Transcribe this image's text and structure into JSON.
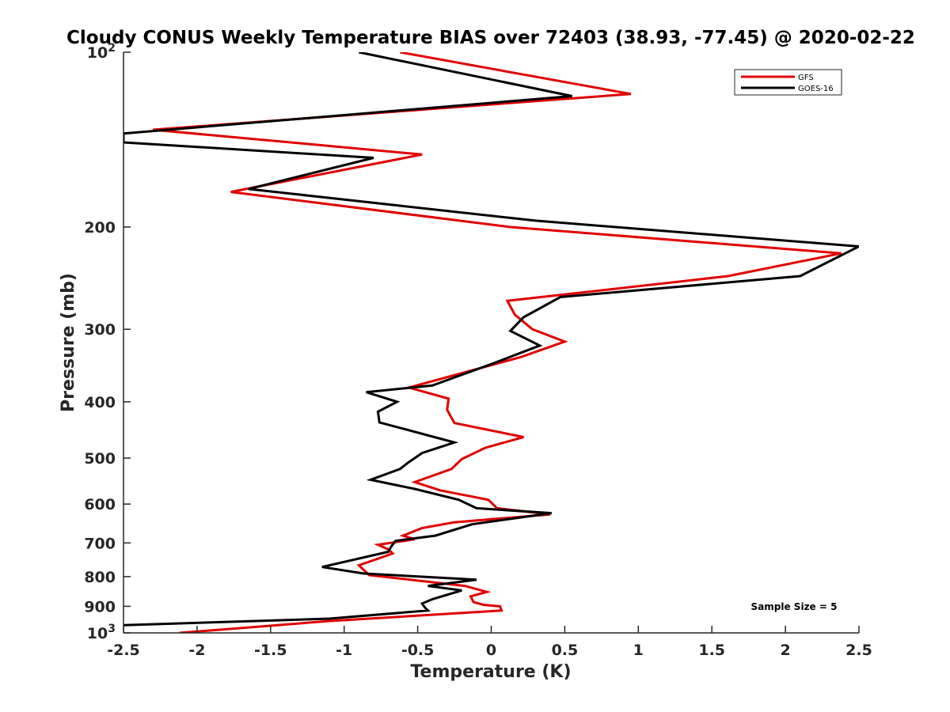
{
  "chart_data": {
    "type": "line",
    "title": "Cloudy CONUS Weekly Temperature BIAS over 72403 (38.93, -77.45) @ 2020-02-22",
    "xlabel": "Temperature (K)",
    "ylabel": "Pressure (mb)",
    "xlim": [
      -2.5,
      2.5
    ],
    "ylim": [
      100,
      1000
    ],
    "yscale": "log",
    "y_reversed": true,
    "grid": false,
    "legend_position": "top-right",
    "xticks": [
      "-2.5",
      "-2",
      "-1.5",
      "-1",
      "-0.5",
      "0",
      "0.5",
      "1",
      "1.5",
      "2",
      "2.5"
    ],
    "yticks": [
      {
        "value": 100,
        "base": "10",
        "exp": "2"
      },
      {
        "value": 200,
        "label": "200"
      },
      {
        "value": 300,
        "label": "300"
      },
      {
        "value": 400,
        "label": "400"
      },
      {
        "value": 500,
        "label": "500"
      },
      {
        "value": 600,
        "label": "600"
      },
      {
        "value": 700,
        "label": "700"
      },
      {
        "value": 800,
        "label": "800"
      },
      {
        "value": 900,
        "label": "900"
      },
      {
        "value": 1000,
        "base": "10",
        "exp": "3"
      }
    ],
    "annotation": "Sample Size = 5",
    "series": [
      {
        "name": "GFS",
        "color": "#e00000",
        "points": [
          [
            -0.62,
            100
          ],
          [
            0.95,
            118
          ],
          [
            -2.3,
            136
          ],
          [
            -0.47,
            150
          ],
          [
            -1.77,
            174
          ],
          [
            0.13,
            200
          ],
          [
            2.38,
            222
          ],
          [
            1.61,
            243
          ],
          [
            0.11,
            268
          ],
          [
            0.16,
            283
          ],
          [
            0.28,
            300
          ],
          [
            0.5,
            315
          ],
          [
            0.2,
            335
          ],
          [
            -0.56,
            378
          ],
          [
            -0.29,
            395
          ],
          [
            -0.3,
            413
          ],
          [
            -0.25,
            435
          ],
          [
            0.22,
            460
          ],
          [
            -0.04,
            480
          ],
          [
            -0.2,
            502
          ],
          [
            -0.27,
            522
          ],
          [
            -0.52,
            550
          ],
          [
            -0.35,
            568
          ],
          [
            -0.02,
            590
          ],
          [
            0.04,
            610
          ],
          [
            0.4,
            625
          ],
          [
            -0.25,
            645
          ],
          [
            -0.47,
            660
          ],
          [
            -0.6,
            680
          ],
          [
            -0.52,
            690
          ],
          [
            -0.77,
            705
          ],
          [
            -0.7,
            718
          ],
          [
            -0.67,
            730
          ],
          [
            -0.9,
            765
          ],
          [
            -0.83,
            795
          ],
          [
            -0.18,
            830
          ],
          [
            -0.03,
            850
          ],
          [
            -0.14,
            865
          ],
          [
            -0.12,
            885
          ],
          [
            -0.05,
            895
          ],
          [
            0.06,
            900
          ],
          [
            0.07,
            915
          ],
          [
            -1.12,
            955
          ],
          [
            -2.12,
            1000
          ]
        ]
      },
      {
        "name": "GOES-16",
        "color": "#000000",
        "points": [
          [
            -0.9,
            100
          ],
          [
            0.55,
            119
          ],
          [
            -2.5,
            138
          ],
          [
            -2.5,
            143
          ],
          [
            -0.8,
            152
          ],
          [
            -1.65,
            172
          ],
          [
            0.3,
            195
          ],
          [
            2.5,
            216
          ],
          [
            2.1,
            243
          ],
          [
            0.47,
            264
          ],
          [
            0.22,
            286
          ],
          [
            0.13,
            302
          ],
          [
            0.33,
            320
          ],
          [
            0.02,
            343
          ],
          [
            -0.4,
            375
          ],
          [
            -0.85,
            385
          ],
          [
            -0.64,
            400
          ],
          [
            -0.77,
            416
          ],
          [
            -0.76,
            434
          ],
          [
            -0.25,
            470
          ],
          [
            -0.47,
            490
          ],
          [
            -0.56,
            508
          ],
          [
            -0.62,
            522
          ],
          [
            -0.82,
            545
          ],
          [
            -0.52,
            565
          ],
          [
            -0.22,
            590
          ],
          [
            -0.1,
            610
          ],
          [
            0.41,
            622
          ],
          [
            -0.13,
            650
          ],
          [
            -0.38,
            680
          ],
          [
            -0.65,
            694
          ],
          [
            -0.68,
            710
          ],
          [
            -0.7,
            725
          ],
          [
            -1.15,
            770
          ],
          [
            -0.87,
            790
          ],
          [
            -0.1,
            810
          ],
          [
            -0.43,
            830
          ],
          [
            -0.2,
            845
          ],
          [
            -0.4,
            875
          ],
          [
            -0.47,
            890
          ],
          [
            -0.45,
            905
          ],
          [
            -0.43,
            915
          ],
          [
            -1.1,
            945
          ],
          [
            -2.5,
            970
          ]
        ]
      }
    ]
  }
}
